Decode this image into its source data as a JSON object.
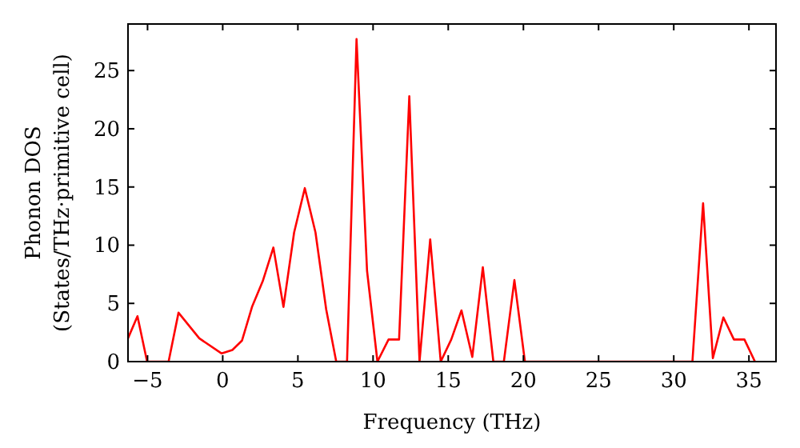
{
  "chart_data": {
    "type": "line",
    "xlabel": "Frequency (THz)",
    "ylabel": "Phonon DOS\n(States/THz·primitive cell)",
    "xlim": [
      -6.3,
      36.8
    ],
    "ylim": [
      0,
      29
    ],
    "xticks": [
      -5,
      0,
      5,
      10,
      15,
      20,
      25,
      30,
      35
    ],
    "yticks": [
      0,
      5,
      10,
      15,
      20,
      25
    ],
    "grid": false,
    "series": [
      {
        "color": "#ff0000",
        "x": [
          -6.3,
          -5.67,
          -5.03,
          -3.6,
          -2.94,
          -1.56,
          -0.07,
          0.64,
          1.28,
          1.95,
          2.66,
          3.37,
          4.04,
          4.75,
          5.46,
          6.17,
          6.88,
          7.55,
          8.27,
          8.9,
          9.6,
          10.29,
          11.03,
          11.73,
          12.41,
          13.09,
          13.8,
          14.5,
          15.2,
          15.88,
          16.6,
          17.3,
          18.0,
          18.7,
          19.4,
          20.1,
          31.24,
          31.95,
          32.6,
          33.3,
          34.0,
          34.7,
          35.4
        ],
        "values": [
          2,
          3.9,
          0,
          0,
          4.2,
          2,
          0.7,
          1,
          1.8,
          4.7,
          6.9,
          9.8,
          4.7,
          11.1,
          14.9,
          11.1,
          4.5,
          0,
          0,
          27.7,
          7.8,
          0,
          1.9,
          1.9,
          22.8,
          0,
          10.5,
          0,
          1.9,
          4.4,
          0.4,
          8.1,
          0,
          0,
          7,
          0,
          0,
          13.6,
          0.3,
          3.8,
          1.9,
          1.9,
          0
        ]
      }
    ]
  }
}
